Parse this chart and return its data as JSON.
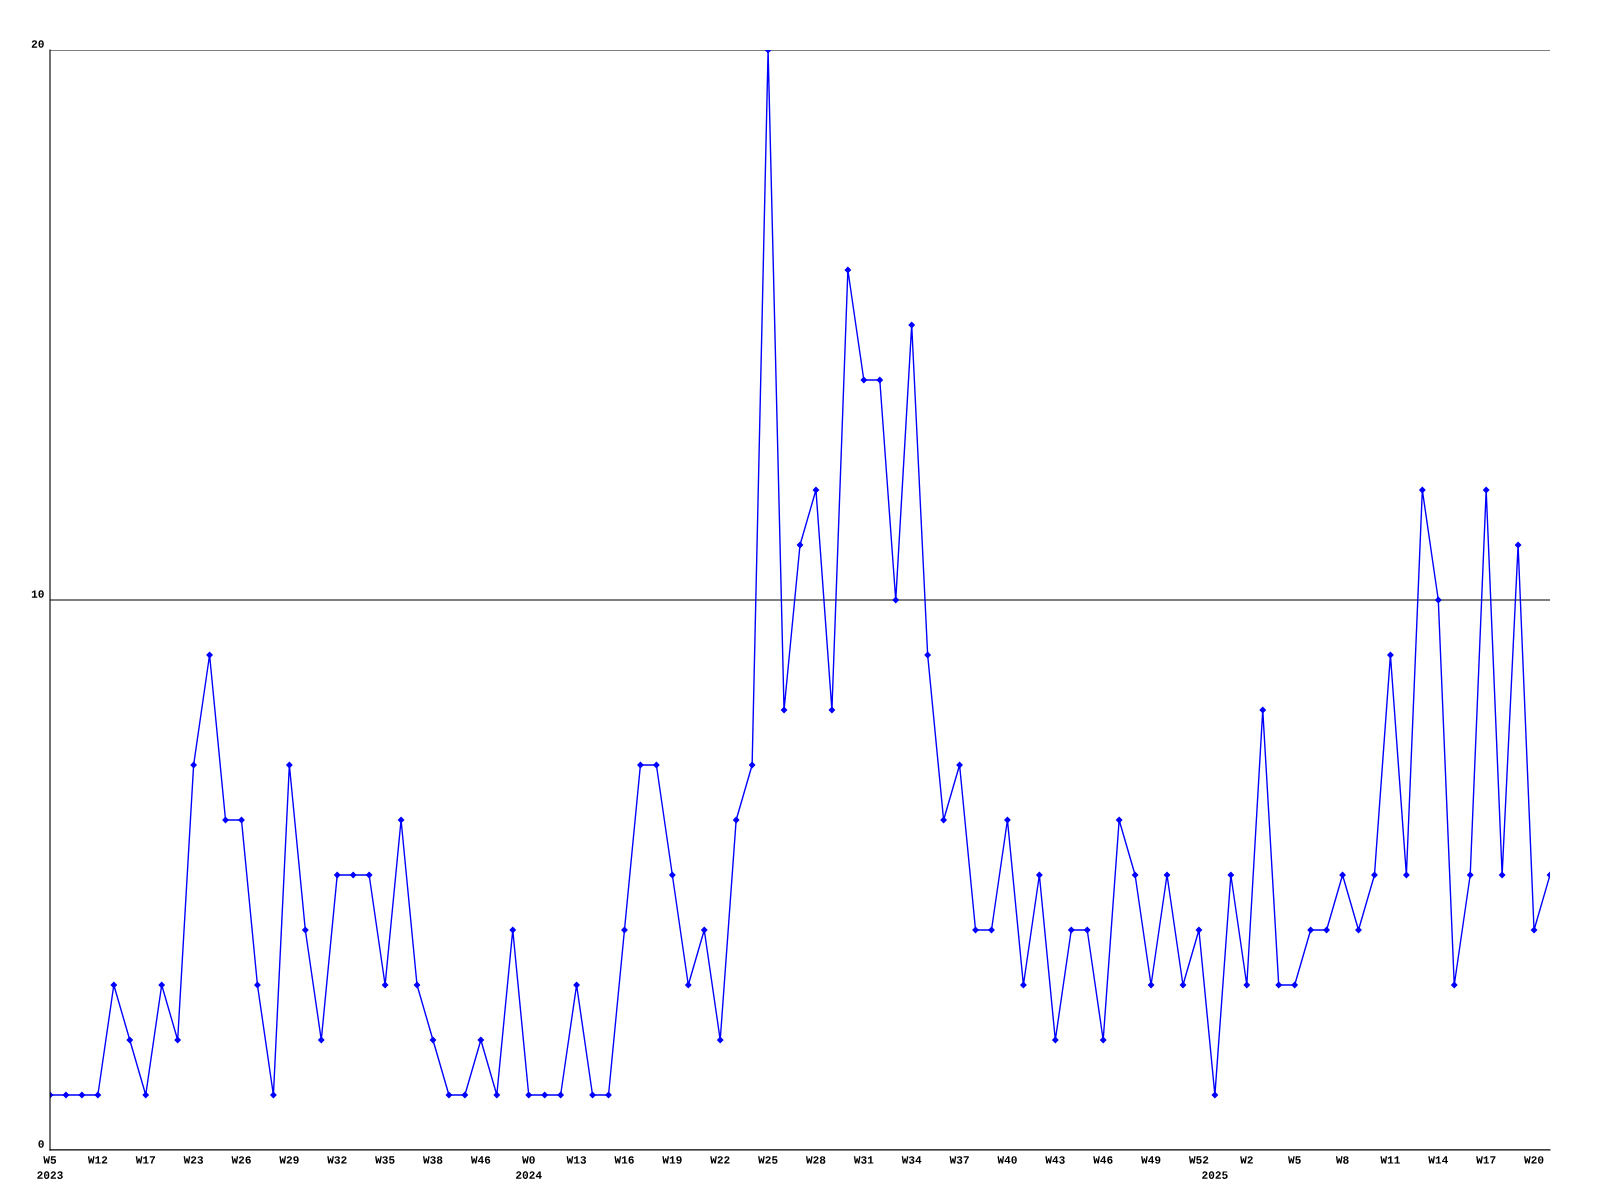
{
  "chart_data": {
    "type": "line",
    "categories": [
      "W5\n2023",
      null,
      null,
      "W12",
      null,
      null,
      "W17",
      null,
      null,
      "W23",
      null,
      null,
      "W26",
      null,
      null,
      "W29",
      null,
      null,
      "W32",
      null,
      null,
      "W35",
      null,
      null,
      "W38",
      null,
      null,
      "W46",
      null,
      null,
      "W0\n2024",
      null,
      null,
      "W13",
      null,
      null,
      "W16",
      null,
      null,
      "W19",
      null,
      null,
      "W22",
      null,
      null,
      "W25",
      null,
      null,
      "W28",
      null,
      null,
      "W31",
      null,
      null,
      "W34",
      null,
      null,
      "W37",
      null,
      null,
      "W40",
      null,
      null,
      "W43",
      null,
      null,
      "W46",
      null,
      null,
      "W49",
      null,
      null,
      "W52",
      "\n2025",
      null,
      "W2",
      null,
      null,
      "W5",
      null,
      null,
      "W8",
      null,
      null,
      "W11",
      null,
      null,
      "W14",
      null,
      null,
      "W17",
      null,
      null,
      "W20",
      null
    ],
    "series": [
      {
        "color": "#0000ff",
        "values": [
          1,
          1,
          1,
          1,
          3,
          2,
          1,
          3,
          2,
          7,
          9,
          6,
          6,
          3,
          1,
          7,
          4,
          2,
          5,
          5,
          5,
          3,
          6,
          3,
          2,
          1,
          1,
          2,
          1,
          4,
          1,
          1,
          1,
          3,
          1,
          1,
          4,
          7,
          7,
          5,
          3,
          4,
          2,
          6,
          7,
          20,
          8,
          11,
          12,
          8,
          16,
          14,
          14,
          10,
          15,
          9,
          6,
          7,
          4,
          4,
          6,
          3,
          5,
          2,
          4,
          4,
          2,
          6,
          5,
          3,
          5,
          3,
          4,
          1,
          5,
          3,
          8,
          3,
          3,
          4,
          4,
          5,
          4,
          5,
          9,
          5,
          12,
          10,
          3,
          5,
          12,
          5,
          11,
          4,
          5
        ]
      }
    ],
    "ylim": [
      0,
      20
    ],
    "yticks": [
      0,
      10,
      20
    ],
    "grid": "y",
    "marker": "diamond",
    "line_style": "solid",
    "legend": false
  }
}
